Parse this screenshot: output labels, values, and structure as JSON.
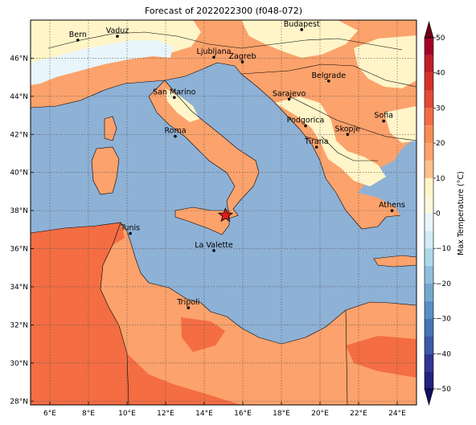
{
  "title": "Forecast of 2022022300 (f048-072)",
  "map": {
    "lon_range": [
      5,
      25
    ],
    "lat_range": [
      27.8,
      48
    ],
    "lon_ticks": [
      {
        "value": 6,
        "label": "6°E"
      },
      {
        "value": 8,
        "label": "8°E"
      },
      {
        "value": 10,
        "label": "10°E"
      },
      {
        "value": 12,
        "label": "12°E"
      },
      {
        "value": 14,
        "label": "14°E"
      },
      {
        "value": 16,
        "label": "16°E"
      },
      {
        "value": 18,
        "label": "18°E"
      },
      {
        "value": 20,
        "label": "20°E"
      },
      {
        "value": 22,
        "label": "22°E"
      },
      {
        "value": 24,
        "label": "24°E"
      }
    ],
    "lat_ticks": [
      {
        "value": 28,
        "label": "28°N"
      },
      {
        "value": 30,
        "label": "30°N"
      },
      {
        "value": 32,
        "label": "32°N"
      },
      {
        "value": 34,
        "label": "34°N"
      },
      {
        "value": 36,
        "label": "36°N"
      },
      {
        "value": 38,
        "label": "38°N"
      },
      {
        "value": 40,
        "label": "40°N"
      },
      {
        "value": 42,
        "label": "42°N"
      },
      {
        "value": 44,
        "label": "44°N"
      },
      {
        "value": 46,
        "label": "46°N"
      }
    ],
    "grid": true,
    "cities": [
      {
        "name": "Bern",
        "lon": 7.45,
        "lat": 46.95
      },
      {
        "name": "Vaduz",
        "lon": 9.5,
        "lat": 47.15
      },
      {
        "name": "Budapest",
        "lon": 19.05,
        "lat": 47.5
      },
      {
        "name": "Ljubljana",
        "lon": 14.5,
        "lat": 46.05
      },
      {
        "name": "Zagreb",
        "lon": 15.98,
        "lat": 45.8
      },
      {
        "name": "Belgrade",
        "lon": 20.45,
        "lat": 44.8
      },
      {
        "name": "San Marino",
        "lon": 12.45,
        "lat": 43.94
      },
      {
        "name": "Sarajevo",
        "lon": 18.4,
        "lat": 43.85
      },
      {
        "name": "Sofia",
        "lon": 23.3,
        "lat": 42.7
      },
      {
        "name": "Podgorica",
        "lon": 19.25,
        "lat": 42.45
      },
      {
        "name": "Skopje",
        "lon": 21.43,
        "lat": 42.0
      },
      {
        "name": "Roma",
        "lon": 12.5,
        "lat": 41.9
      },
      {
        "name": "Tirana",
        "lon": 19.82,
        "lat": 41.33
      },
      {
        "name": "Athens",
        "lon": 23.73,
        "lat": 38.0
      },
      {
        "name": "Tunis",
        "lon": 10.17,
        "lat": 36.8
      },
      {
        "name": "La Valette",
        "lon": 14.5,
        "lat": 35.9
      },
      {
        "name": "Tripoli",
        "lon": 13.18,
        "lat": 32.9
      }
    ],
    "marker": {
      "lon": 15.1,
      "lat": 37.75,
      "color": "#e31a1c"
    }
  },
  "colorbar": {
    "label": "Max Temperature (°C)",
    "ticks": [
      {
        "value": 50,
        "label": "50"
      },
      {
        "value": 40,
        "label": "40"
      },
      {
        "value": 30,
        "label": "30"
      },
      {
        "value": 20,
        "label": "20"
      },
      {
        "value": 10,
        "label": "10"
      },
      {
        "value": 0,
        "label": "0"
      },
      {
        "value": -10,
        "label": "−10"
      },
      {
        "value": -20,
        "label": "−20"
      },
      {
        "value": -30,
        "label": "−30"
      },
      {
        "value": -40,
        "label": "−40"
      },
      {
        "value": -50,
        "label": "−50"
      }
    ],
    "bins": [
      {
        "from": 45,
        "to": 50,
        "color": "#a50026"
      },
      {
        "from": 40,
        "to": 45,
        "color": "#c21d27"
      },
      {
        "from": 35,
        "to": 40,
        "color": "#d73027"
      },
      {
        "from": 30,
        "to": 35,
        "color": "#e34a33"
      },
      {
        "from": 25,
        "to": 30,
        "color": "#f46d43"
      },
      {
        "from": 20,
        "to": 25,
        "color": "#f88d52"
      },
      {
        "from": 15,
        "to": 20,
        "color": "#fca26c"
      },
      {
        "from": 10,
        "to": 15,
        "color": "#fdc08a"
      },
      {
        "from": 5,
        "to": 10,
        "color": "#fff5c8"
      },
      {
        "from": 0,
        "to": 5,
        "color": "#fdf8dd"
      },
      {
        "from": -5,
        "to": 0,
        "color": "#e8f5fa"
      },
      {
        "from": -10,
        "to": -5,
        "color": "#d2ebf5"
      },
      {
        "from": -15,
        "to": -10,
        "color": "#abd9e9"
      },
      {
        "from": -20,
        "to": -15,
        "color": "#90bfdd"
      },
      {
        "from": -25,
        "to": -20,
        "color": "#74a9cf"
      },
      {
        "from": -30,
        "to": -25,
        "color": "#5a8fc4"
      },
      {
        "from": -35,
        "to": -30,
        "color": "#4575b4"
      },
      {
        "from": -40,
        "to": -35,
        "color": "#3a5ba8"
      },
      {
        "from": -45,
        "to": -40,
        "color": "#313695"
      },
      {
        "from": -50,
        "to": -45,
        "color": "#23237f"
      }
    ],
    "over_color": "#6e0016",
    "under_color": "#10105e"
  },
  "colors": {
    "sea": "#8eb1d6",
    "land_warm": "#fca26c",
    "land_hot": "#f46d43",
    "land_mild": "#fff5c8",
    "land_cold": "#e8f5fa"
  }
}
